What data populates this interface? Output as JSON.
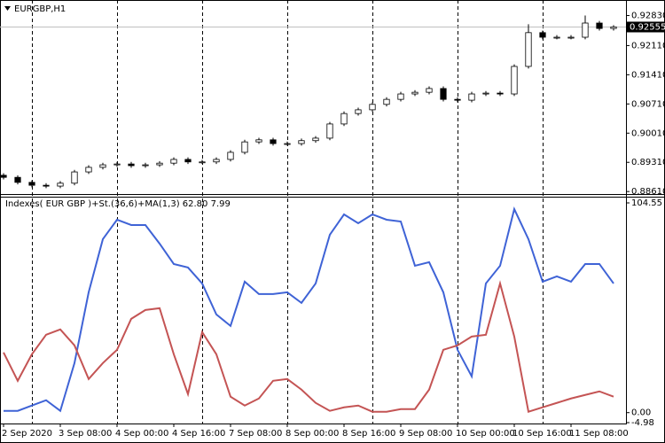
{
  "chart_data": [
    {
      "type": "candlestick",
      "title": "EURGBP,H1",
      "x": [
        0,
        4,
        8,
        12,
        16,
        20,
        24,
        28,
        32,
        36,
        40,
        44,
        48,
        52,
        56,
        60,
        64,
        68,
        72,
        76,
        80,
        84,
        88,
        92,
        96,
        100,
        104,
        108,
        112,
        116,
        120,
        124,
        128,
        132,
        136,
        140,
        144,
        148,
        152,
        156,
        160,
        164,
        168,
        172
      ],
      "open": [
        0.89,
        0.8895,
        0.8883,
        0.8876,
        0.8874,
        0.8881,
        0.8908,
        0.8919,
        0.8925,
        0.8927,
        0.8923,
        0.8925,
        0.8929,
        0.8938,
        0.8932,
        0.8932,
        0.8938,
        0.8955,
        0.898,
        0.8985,
        0.8976,
        0.8976,
        0.8983,
        0.8989,
        0.9023,
        0.9048,
        0.9057,
        0.907,
        0.9082,
        0.9095,
        0.9099,
        0.9108,
        0.9082,
        0.908,
        0.9095,
        0.9097,
        0.9095,
        0.9161,
        0.9242,
        0.9231,
        0.9231,
        0.9231,
        0.9265,
        0.9252
      ],
      "high": [
        0.8905,
        0.89,
        0.8888,
        0.8881,
        0.8886,
        0.8913,
        0.8924,
        0.893,
        0.8932,
        0.8932,
        0.893,
        0.8934,
        0.8943,
        0.8943,
        0.8937,
        0.8943,
        0.896,
        0.8985,
        0.899,
        0.899,
        0.8981,
        0.8988,
        0.8994,
        0.9028,
        0.9053,
        0.9062,
        0.9075,
        0.9087,
        0.91,
        0.9104,
        0.9113,
        0.9113,
        0.9087,
        0.91,
        0.9102,
        0.9102,
        0.9166,
        0.9262,
        0.9247,
        0.9236,
        0.9236,
        0.9283,
        0.927,
        0.926
      ],
      "low": [
        0.889,
        0.8878,
        0.8871,
        0.8869,
        0.8869,
        0.8876,
        0.8903,
        0.8914,
        0.892,
        0.8918,
        0.8918,
        0.892,
        0.8924,
        0.8927,
        0.8927,
        0.8927,
        0.8933,
        0.895,
        0.8975,
        0.8971,
        0.8971,
        0.8971,
        0.8978,
        0.8984,
        0.9018,
        0.9043,
        0.9052,
        0.9065,
        0.9077,
        0.909,
        0.9094,
        0.9077,
        0.9075,
        0.9075,
        0.909,
        0.909,
        0.909,
        0.9156,
        0.9226,
        0.9226,
        0.9226,
        0.9226,
        0.9247,
        0.9247
      ],
      "close": [
        0.8895,
        0.8883,
        0.8876,
        0.8874,
        0.8881,
        0.8908,
        0.8919,
        0.8925,
        0.8927,
        0.8923,
        0.8925,
        0.8929,
        0.8938,
        0.8932,
        0.8932,
        0.8938,
        0.8955,
        0.898,
        0.8985,
        0.8976,
        0.8976,
        0.8983,
        0.8989,
        0.9023,
        0.9048,
        0.9057,
        0.907,
        0.9082,
        0.9095,
        0.9099,
        0.9108,
        0.9082,
        0.908,
        0.9095,
        0.9097,
        0.9095,
        0.9161,
        0.9242,
        0.9231,
        0.9231,
        0.9231,
        0.9265,
        0.9252,
        0.92555
      ],
      "up_color": "#ffffff",
      "down_color": "#000000",
      "wick_color": "#000000",
      "current_price": 0.92555,
      "xlim": [
        -1,
        175.5
      ],
      "ylim": [
        0.8855,
        0.9316
      ],
      "yticks": [
        {
          "value": 0.9283,
          "label": "0.92830"
        },
        {
          "value": 0.9211,
          "label": "0.92110"
        },
        {
          "value": 0.9141,
          "label": "0.91410"
        },
        {
          "value": 0.9071,
          "label": "0.90710"
        },
        {
          "value": 0.9001,
          "label": "0.90010"
        },
        {
          "value": 0.8931,
          "label": "0.89310"
        },
        {
          "value": 0.8861,
          "label": "0.88610"
        }
      ],
      "separators": [
        8,
        32,
        56,
        80,
        104,
        128,
        152
      ]
    },
    {
      "type": "line",
      "title": "Indexes( EUR GBP )+St.(36,6)+MA(1,3) 62.80 7.99",
      "x": [
        0,
        4,
        8,
        12,
        16,
        20,
        24,
        28,
        32,
        36,
        40,
        44,
        48,
        52,
        56,
        60,
        64,
        68,
        72,
        76,
        80,
        84,
        88,
        92,
        96,
        100,
        104,
        108,
        112,
        116,
        120,
        124,
        128,
        132,
        136,
        140,
        144,
        148,
        152,
        156,
        160,
        164,
        168,
        172
      ],
      "series": [
        {
          "color": "#3f63d6",
          "values": [
            0.88,
            0.88,
            3.53,
            6.18,
            0.88,
            24.7,
            59.99,
            86.46,
            96.16,
            93.51,
            93.51,
            84.25,
            74.1,
            72.34,
            64.4,
            48.96,
            43.23,
            65.28,
            59.11,
            59.11,
            59.99,
            54.7,
            64.4,
            88.66,
            98.81,
            94.4,
            98.81,
            96.16,
            95.28,
            73.22,
            74.99,
            59.99,
            31.32,
            18.09,
            64.4,
            73.22,
            101.45,
            86.46,
            65.28,
            67.93,
            65.28,
            74.1,
            74.1,
            64.4
          ]
        },
        {
          "color": "#c45454",
          "values": [
            29.99,
            15.88,
            29.11,
            38.82,
            41.46,
            33.52,
            16.76,
            24.7,
            31.32,
            46.76,
            51.17,
            52.05,
            29.11,
            9.26,
            40.14,
            29.11,
            7.94,
            3.53,
            7.06,
            15.88,
            16.76,
            11.47,
            4.85,
            0.88,
            2.65,
            3.53,
            0.44,
            0.44,
            1.76,
            1.76,
            11.47,
            31.32,
            33.52,
            37.93,
            38.82,
            64.4,
            37.93,
            0.44,
            2.65,
            4.85,
            7.06,
            8.82,
            10.59,
            7.94
          ]
        }
      ],
      "xlim": [
        -1,
        175.5
      ],
      "ylim": [
        -4.98,
        104.55
      ],
      "yticks": [
        104.55,
        {
          "value": 0,
          "label": "0.00"
        },
        -4.98
      ],
      "xticks": [
        {
          "value": 0,
          "label": "2 Sep 2020"
        },
        {
          "value": 16,
          "label": "3 Sep 08:00"
        },
        {
          "value": 32,
          "label": "4 Sep 00:00"
        },
        {
          "value": 48,
          "label": "4 Sep 16:00"
        },
        {
          "value": 64,
          "label": "7 Sep 08:00"
        },
        {
          "value": 80,
          "label": "8 Sep 00:00"
        },
        {
          "value": 96,
          "label": "8 Sep 16:00"
        },
        {
          "value": 112,
          "label": "9 Sep 08:00"
        },
        {
          "value": 128,
          "label": "10 Sep 00:00"
        },
        {
          "value": 144,
          "label": "10 Sep 16:00"
        },
        {
          "value": 160,
          "label": "11 Sep 08:00"
        }
      ]
    }
  ]
}
